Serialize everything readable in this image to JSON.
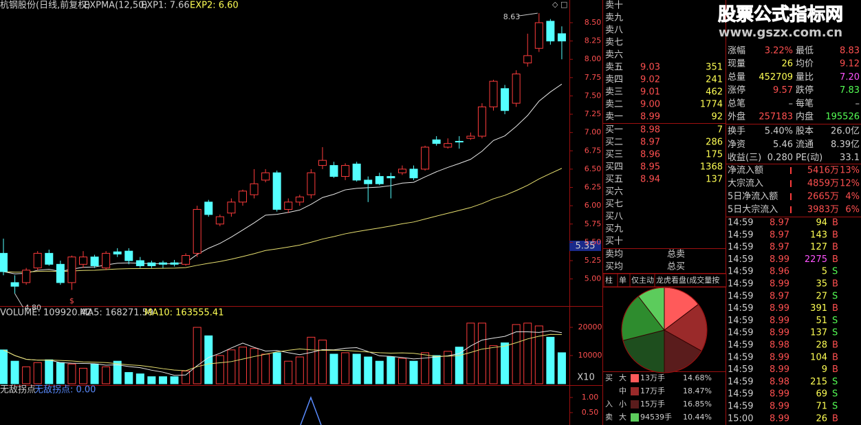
{
  "header": {
    "title": "杭钢股份(日线,前复权)",
    "indicator": "EXPMA(12,50)",
    "exp1": "EXP1: 7.66",
    "exp2": "EXP2: 6.60"
  },
  "price_chart": {
    "ylim": [
      4.63,
      8.81
    ],
    "yticks": [
      {
        "value": 8.5,
        "label": "8.50"
      },
      {
        "value": 8.25,
        "label": "8.25"
      },
      {
        "value": 8.0,
        "label": "8.00"
      },
      {
        "value": 7.75,
        "label": "7.75"
      },
      {
        "value": 7.5,
        "label": "7.50"
      },
      {
        "value": 7.25,
        "label": "7.25"
      },
      {
        "value": 7.0,
        "label": "7.00"
      },
      {
        "value": 6.75,
        "label": "6.75"
      },
      {
        "value": 6.5,
        "label": "6.50"
      },
      {
        "value": 6.25,
        "label": "6.25"
      },
      {
        "value": 6.0,
        "label": "6.00"
      },
      {
        "value": 5.75,
        "label": "5.75"
      },
      {
        "value": 5.5,
        "label": "5.50"
      },
      {
        "value": 5.25,
        "label": "5.25"
      },
      {
        "value": 5.0,
        "label": "5.00"
      }
    ],
    "candles": [
      {
        "o": 5.35,
        "h": 5.55,
        "l": 5.05,
        "c": 5.1
      },
      {
        "o": 4.95,
        "h": 5.05,
        "l": 4.8,
        "c": 4.9
      },
      {
        "o": 4.95,
        "h": 5.15,
        "l": 4.92,
        "c": 5.12
      },
      {
        "o": 5.15,
        "h": 5.38,
        "l": 5.12,
        "c": 5.35
      },
      {
        "o": 5.35,
        "h": 5.4,
        "l": 5.18,
        "c": 5.2
      },
      {
        "o": 5.2,
        "h": 5.25,
        "l": 4.92,
        "c": 4.95
      },
      {
        "o": 4.95,
        "h": 5.32,
        "l": 4.85,
        "c": 5.3
      },
      {
        "o": 5.2,
        "h": 5.38,
        "l": 5.15,
        "c": 5.3
      },
      {
        "o": 5.3,
        "h": 5.33,
        "l": 5.15,
        "c": 5.18
      },
      {
        "o": 5.15,
        "h": 5.38,
        "l": 5.12,
        "c": 5.35
      },
      {
        "o": 5.37,
        "h": 5.42,
        "l": 5.3,
        "c": 5.34
      },
      {
        "o": 5.38,
        "h": 5.42,
        "l": 5.2,
        "c": 5.25
      },
      {
        "o": 5.25,
        "h": 5.3,
        "l": 5.15,
        "c": 5.18
      },
      {
        "o": 5.22,
        "h": 5.25,
        "l": 5.15,
        "c": 5.18
      },
      {
        "o": 5.22,
        "h": 5.25,
        "l": 5.15,
        "c": 5.2
      },
      {
        "o": 5.22,
        "h": 5.26,
        "l": 5.17,
        "c": 5.2
      },
      {
        "o": 5.2,
        "h": 5.35,
        "l": 5.18,
        "c": 5.32
      },
      {
        "o": 5.35,
        "h": 6.0,
        "l": 5.3,
        "c": 5.95
      },
      {
        "o": 6.05,
        "h": 6.08,
        "l": 5.85,
        "c": 5.88
      },
      {
        "o": 5.75,
        "h": 5.88,
        "l": 5.72,
        "c": 5.85
      },
      {
        "o": 5.9,
        "h": 6.1,
        "l": 5.85,
        "c": 6.05
      },
      {
        "o": 6.05,
        "h": 6.22,
        "l": 6.0,
        "c": 6.2
      },
      {
        "o": 6.15,
        "h": 6.5,
        "l": 6.1,
        "c": 6.3
      },
      {
        "o": 6.35,
        "h": 6.5,
        "l": 6.32,
        "c": 6.45
      },
      {
        "o": 6.45,
        "h": 6.48,
        "l": 5.92,
        "c": 5.95
      },
      {
        "o": 5.95,
        "h": 6.1,
        "l": 5.9,
        "c": 6.05
      },
      {
        "o": 6.05,
        "h": 6.15,
        "l": 6.0,
        "c": 6.12
      },
      {
        "o": 6.15,
        "h": 6.5,
        "l": 6.1,
        "c": 6.45
      },
      {
        "o": 6.55,
        "h": 6.8,
        "l": 6.5,
        "c": 6.62
      },
      {
        "o": 6.55,
        "h": 6.6,
        "l": 6.38,
        "c": 6.4
      },
      {
        "o": 6.4,
        "h": 6.58,
        "l": 6.35,
        "c": 6.55
      },
      {
        "o": 6.57,
        "h": 6.6,
        "l": 6.33,
        "c": 6.35
      },
      {
        "o": 6.35,
        "h": 6.4,
        "l": 6.05,
        "c": 6.3
      },
      {
        "o": 6.4,
        "h": 6.45,
        "l": 6.28,
        "c": 6.3
      },
      {
        "o": 6.4,
        "h": 6.45,
        "l": 6.1,
        "c": 6.38
      },
      {
        "o": 6.45,
        "h": 6.55,
        "l": 6.42,
        "c": 6.5
      },
      {
        "o": 6.5,
        "h": 6.55,
        "l": 6.35,
        "c": 6.38
      },
      {
        "o": 6.5,
        "h": 6.82,
        "l": 6.48,
        "c": 6.8
      },
      {
        "o": 6.9,
        "h": 6.95,
        "l": 6.82,
        "c": 6.85
      },
      {
        "o": 6.8,
        "h": 6.92,
        "l": 6.78,
        "c": 6.85
      },
      {
        "o": 6.88,
        "h": 6.95,
        "l": 6.78,
        "c": 6.87
      },
      {
        "o": 6.92,
        "h": 7.0,
        "l": 6.9,
        "c": 6.95
      },
      {
        "o": 6.95,
        "h": 7.4,
        "l": 6.92,
        "c": 7.35
      },
      {
        "o": 7.35,
        "h": 7.72,
        "l": 7.3,
        "c": 7.7
      },
      {
        "o": 7.6,
        "h": 7.65,
        "l": 7.25,
        "c": 7.3
      },
      {
        "o": 7.4,
        "h": 7.85,
        "l": 7.35,
        "c": 7.8
      },
      {
        "o": 7.95,
        "h": 8.35,
        "l": 7.9,
        "c": 8.05
      },
      {
        "o": 8.15,
        "h": 8.63,
        "l": 8.1,
        "c": 8.5
      },
      {
        "o": 8.52,
        "h": 8.55,
        "l": 8.2,
        "c": 8.25
      },
      {
        "o": 8.35,
        "h": 8.45,
        "l": 8.0,
        "c": 8.25
      }
    ],
    "low_label": "4.80",
    "cursor_price": "5.35",
    "marker": "$"
  },
  "volume_chart": {
    "title": "VOLUME: 109920.42",
    "ma5": "MA5: 168271.59",
    "ma10": "MA10: 163555.41",
    "unit": "X10",
    "ylim": [
      0,
      27560
    ],
    "yticks": [
      20000,
      10000
    ],
    "values": [
      12000,
      8000,
      6000,
      7500,
      8500,
      7500,
      7000,
      5500,
      7000,
      6000,
      8000,
      4000,
      3500,
      2500,
      2500,
      2500,
      4500,
      20000,
      17000,
      10000,
      12000,
      13000,
      12500,
      10500,
      11000,
      8000,
      9500,
      16500,
      15500,
      10500,
      11000,
      10500,
      9500,
      8000,
      9500,
      9000,
      8000,
      11000,
      10000,
      11500,
      13000,
      21500,
      21500,
      13500,
      14500,
      21000,
      21500,
      20500,
      16500,
      11000
    ]
  },
  "indicator_chart": {
    "title": "无敌拐点",
    "value_text": "无敌拐点: 0.00",
    "ylim": [
      0.09,
      1.41
    ],
    "yticks": [
      {
        "value": 1.0,
        "label": "1.00"
      },
      {
        "value": 0.5,
        "label": "0.50"
      }
    ]
  },
  "order_book": {
    "sell": [
      {
        "label": "卖十"
      },
      {
        "label": "卖九"
      },
      {
        "label": "卖八"
      },
      {
        "label": "卖七"
      },
      {
        "label": "卖六"
      },
      {
        "label": "卖五",
        "price": "9.03",
        "volume": "351"
      },
      {
        "label": "卖四",
        "price": "9.02",
        "volume": "241"
      },
      {
        "label": "卖三",
        "price": "9.01",
        "volume": "462"
      },
      {
        "label": "卖二",
        "price": "9.00",
        "volume": "1774"
      },
      {
        "label": "卖一",
        "price": "8.99",
        "volume": "92"
      }
    ],
    "buy": [
      {
        "label": "买一",
        "price": "8.98",
        "volume": "7"
      },
      {
        "label": "买二",
        "price": "8.97",
        "volume": "286"
      },
      {
        "label": "买三",
        "price": "8.96",
        "volume": "175"
      },
      {
        "label": "买四",
        "price": "8.95",
        "volume": "1368"
      },
      {
        "label": "买五",
        "price": "8.94",
        "volume": "137"
      },
      {
        "label": "买六"
      },
      {
        "label": "买七"
      },
      {
        "label": "买八"
      },
      {
        "label": "买九"
      },
      {
        "label": "买十"
      }
    ],
    "sell_avg": "卖均",
    "total_sell": "总卖",
    "buy_avg": "买均",
    "total_buy": "总买",
    "tabs": [
      "柱",
      "单",
      "仅主动",
      "龙虎看盘(成交量按"
    ]
  },
  "pie": {
    "slices": [
      {
        "value": 14.68,
        "color": "#ff5a5a"
      },
      {
        "value": 18.47,
        "color": "#9a2a2a"
      },
      {
        "value": 16.85,
        "color": "#5a1c1c"
      },
      {
        "value": 21.06,
        "color": "#1e4e1e"
      },
      {
        "value": 18.5,
        "color": "#2e8c2e"
      },
      {
        "value": 10.44,
        "color": "#5ccc5c"
      }
    ],
    "side_labels": [
      "买",
      "入",
      "卖"
    ],
    "legend": [
      {
        "size": "大",
        "amount": "13万手",
        "pct": "14.68%"
      },
      {
        "size": "中",
        "amount": "17万手",
        "pct": "18.47%"
      },
      {
        "size": "小",
        "amount": "15万手",
        "pct": "16.85%"
      },
      {
        "size": "大",
        "amount": "94539手",
        "pct": "10.44%"
      }
    ]
  },
  "watermark": {
    "title": "股票公式指标网",
    "url": "www.gszx.com.cn"
  },
  "stats": [
    {
      "l1": "涨幅",
      "v1": "3.22%",
      "t1": "red",
      "l2": "最低",
      "v2": "8.83",
      "t2": "red"
    },
    {
      "l1": "现量",
      "v1": "26",
      "t1": "yellow",
      "l2": "均价",
      "v2": "9.12",
      "t2": "red"
    },
    {
      "l1": "总量",
      "v1": "452709",
      "t1": "yellow",
      "l2": "量比",
      "v2": "7.20",
      "t2": "purple"
    },
    {
      "l1": "涨停",
      "v1": "9.57",
      "t1": "red",
      "l2": "跌停",
      "v2": "7.83",
      "t2": "green"
    },
    {
      "l1": "总笔",
      "v1": "–",
      "t1": "white",
      "l2": "每笔",
      "v2": "–",
      "t2": "white"
    },
    {
      "l1": "外盘",
      "v1": "257183",
      "t1": "red",
      "l2": "内盘",
      "v2": "195526",
      "t2": "green"
    },
    {
      "l1": "换手",
      "v1": "5.40%",
      "t1": "white",
      "l2": "股本",
      "v2": "26.0亿",
      "t2": "white"
    },
    {
      "l1": "净资",
      "v1": "5.46",
      "t1": "white",
      "l2": "流通",
      "v2": "8.39亿",
      "t2": "white"
    },
    {
      "l1": "收益(三)",
      "v1": "0.280",
      "t1": "white",
      "l2": "PE(动)",
      "v2": "33.1",
      "t2": "white"
    }
  ],
  "flows": [
    {
      "label": "净流入额",
      "amount": "5416万",
      "pct": "13%"
    },
    {
      "label": "大宗流入",
      "amount": "4859万",
      "pct": "12%"
    },
    {
      "label": "5日净流入额",
      "amount": "2665万",
      "pct": "4%"
    },
    {
      "label": "5日大宗流入",
      "amount": "3983万",
      "pct": "6%"
    }
  ],
  "trades": [
    {
      "time": "14:59",
      "price": "8.97",
      "volume": "94",
      "side": "B"
    },
    {
      "time": "14:59",
      "price": "8.97",
      "volume": "143",
      "side": "B"
    },
    {
      "time": "14:59",
      "price": "8.97",
      "volume": "127",
      "side": "B"
    },
    {
      "time": "14:59",
      "price": "8.99",
      "volume": "2275",
      "side": "B",
      "big": true
    },
    {
      "time": "14:59",
      "price": "8.96",
      "volume": "5",
      "side": "S"
    },
    {
      "time": "14:59",
      "price": "8.99",
      "volume": "35",
      "side": "B"
    },
    {
      "time": "14:59",
      "price": "8.97",
      "volume": "27",
      "side": "S"
    },
    {
      "time": "14:59",
      "price": "8.99",
      "volume": "391",
      "side": "B"
    },
    {
      "time": "14:59",
      "price": "8.99",
      "volume": "51",
      "side": "S"
    },
    {
      "time": "14:59",
      "price": "8.99",
      "volume": "137",
      "side": "S"
    },
    {
      "time": "14:59",
      "price": "8.98",
      "volume": "28",
      "side": "B"
    },
    {
      "time": "14:59",
      "price": "8.99",
      "volume": "104",
      "side": "B"
    },
    {
      "time": "14:59",
      "price": "8.99",
      "volume": "9",
      "side": "B"
    },
    {
      "time": "14:59",
      "price": "8.98",
      "volume": "215",
      "side": "S"
    },
    {
      "time": "14:59",
      "price": "8.99",
      "volume": "69",
      "side": "S"
    },
    {
      "time": "14:59",
      "price": "8.99",
      "volume": "71",
      "side": "S"
    },
    {
      "time": "15:00",
      "price": "8.99",
      "volume": "26",
      "side": "B"
    }
  ]
}
